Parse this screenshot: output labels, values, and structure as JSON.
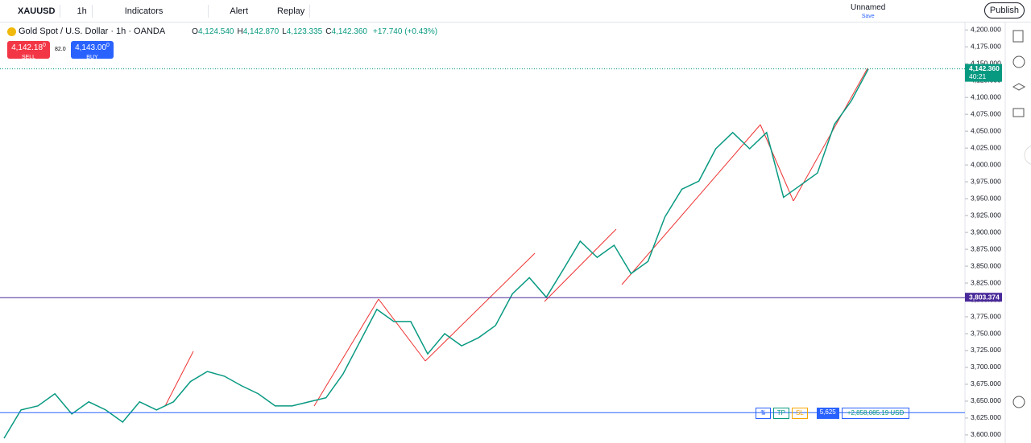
{
  "toolbar": {
    "symbol": "XAUUSD",
    "interval": "1h",
    "indicators": "Indicators",
    "alert": "Alert",
    "replay": "Replay",
    "layout_name": "Unnamed",
    "save": "Save",
    "publish": "Publish"
  },
  "legend": {
    "title": "Gold Spot / U.S. Dollar · 1h · OANDA",
    "ohlc": [
      {
        "label": "O",
        "value": "4,124.540"
      },
      {
        "label": "H",
        "value": "4,142.870"
      },
      {
        "label": "L",
        "value": "4,123.335"
      },
      {
        "label": "C",
        "value": "4,142.360"
      }
    ],
    "change": "+17.740 (+0.43%)"
  },
  "trade": {
    "sell_price": "4,142.18",
    "sell_price_small": "0",
    "sell": "SELL",
    "spread": "82.0",
    "buy_price": "4,143.00",
    "buy_price_small": "0",
    "buy": "BUY"
  },
  "position": {
    "tp": "TP",
    "sl": "SL",
    "quantity": "5,625",
    "pnl": "+2,858,085.19 USD"
  },
  "chart_data": {
    "type": "line",
    "ylim": [
      3588,
      4211
    ],
    "grid": false,
    "yticks": [
      {
        "value": 3600,
        "label": "3,600.000"
      },
      {
        "value": 3625,
        "label": "3,625.000"
      },
      {
        "value": 3650,
        "label": "3,650.000"
      },
      {
        "value": 3675,
        "label": "3,675.000"
      },
      {
        "value": 3700,
        "label": "3,700.000"
      },
      {
        "value": 3725,
        "label": "3,725.000"
      },
      {
        "value": 3750,
        "label": "3,750.000"
      },
      {
        "value": 3775,
        "label": "3,775.000"
      },
      {
        "value": 3800,
        "label": "3,800.000"
      },
      {
        "value": 3825,
        "label": "3,825.000"
      },
      {
        "value": 3850,
        "label": "3,850.000"
      },
      {
        "value": 3875,
        "label": "3,875.000"
      },
      {
        "value": 3900,
        "label": "3,900.000"
      },
      {
        "value": 3925,
        "label": "3,925.000"
      },
      {
        "value": 3950,
        "label": "3,950.000"
      },
      {
        "value": 3975,
        "label": "3,975.000"
      },
      {
        "value": 4000,
        "label": "4,000.000"
      },
      {
        "value": 4025,
        "label": "4,025.000"
      },
      {
        "value": 4050,
        "label": "4,050.000"
      },
      {
        "value": 4075,
        "label": "4,075.000"
      },
      {
        "value": 4100,
        "label": "4,100.000"
      },
      {
        "value": 4125,
        "label": "4,125.000"
      },
      {
        "value": 4150,
        "label": "4,150.000"
      },
      {
        "value": 4175,
        "label": "4,175.000"
      },
      {
        "value": 4200,
        "label": "4,200.000"
      }
    ],
    "series": [
      {
        "color": "#089981",
        "values": [
          3595,
          3637,
          3643,
          3661,
          3631,
          3649,
          3637,
          3619,
          3649,
          3637,
          3649,
          3679,
          3694,
          3687,
          3673,
          3661,
          3643,
          3643,
          3649,
          3655,
          3690,
          3738,
          3786,
          3768,
          3768,
          3720,
          3750,
          3732,
          3744,
          3762,
          3809,
          3833,
          3804,
          3845,
          3887,
          3863,
          3881,
          3839,
          3857,
          3923,
          3964,
          3976,
          4024,
          4048,
          4024,
          4048,
          3952,
          3970,
          3988,
          4060,
          4095,
          4142
        ]
      }
    ],
    "price_lines": [
      {
        "value": 4142.36,
        "label": "4,142.360",
        "countdown": "40:21",
        "color": "#089981"
      },
      {
        "value": 3803.374,
        "label": "3,803.374",
        "color": "#4a2a9a"
      },
      {
        "value": 3633,
        "color": "#2962ff"
      }
    ]
  }
}
